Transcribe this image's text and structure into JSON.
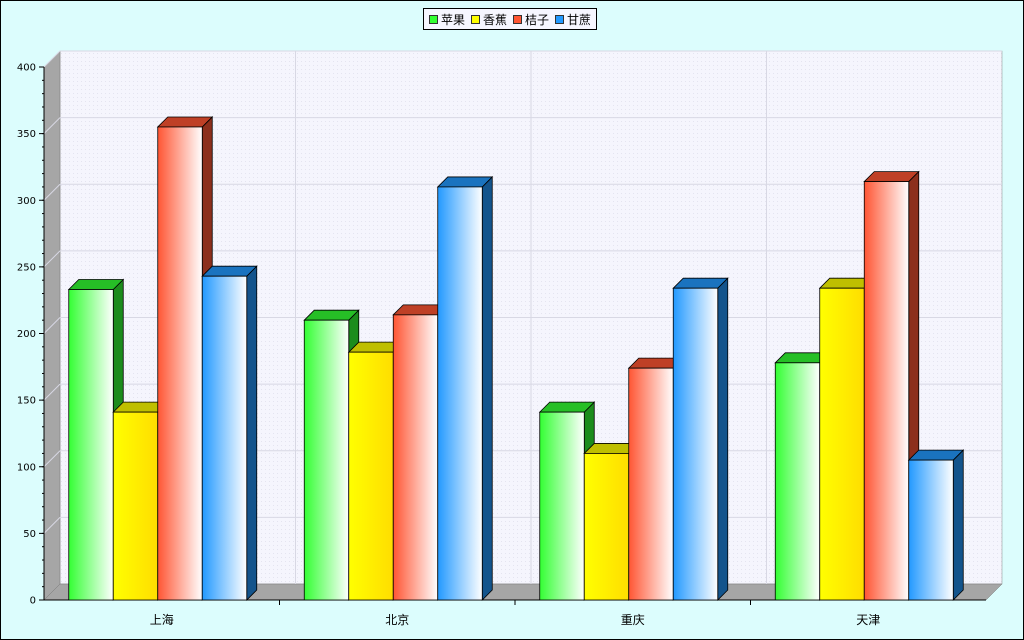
{
  "colors": {
    "background": "#dcfdfd",
    "plot_area": "#f4f4fc",
    "floor": "#a6a6a6",
    "wall_left": "#a6a6a6",
    "series": [
      "#33ff33",
      "#ffff00",
      "#ff5533",
      "#2299ff"
    ]
  },
  "chart_data": {
    "type": "bar",
    "style": "3d-clustered",
    "title": "",
    "xlabel": "",
    "ylabel": "",
    "ylim": [
      0,
      400
    ],
    "yticks": [
      0,
      50,
      100,
      150,
      200,
      250,
      300,
      350,
      400
    ],
    "grid": true,
    "legend_position": "top-center",
    "categories": [
      "上海",
      "北京",
      "重庆",
      "天津"
    ],
    "series": [
      {
        "name": "苹果",
        "values": [
          233,
          210,
          141,
          178
        ]
      },
      {
        "name": "香蕉",
        "values": [
          141,
          186,
          110,
          234
        ]
      },
      {
        "name": "桔子",
        "values": [
          355,
          214,
          174,
          314
        ]
      },
      {
        "name": "甘蔗",
        "values": [
          243,
          310,
          234,
          105
        ]
      }
    ]
  }
}
